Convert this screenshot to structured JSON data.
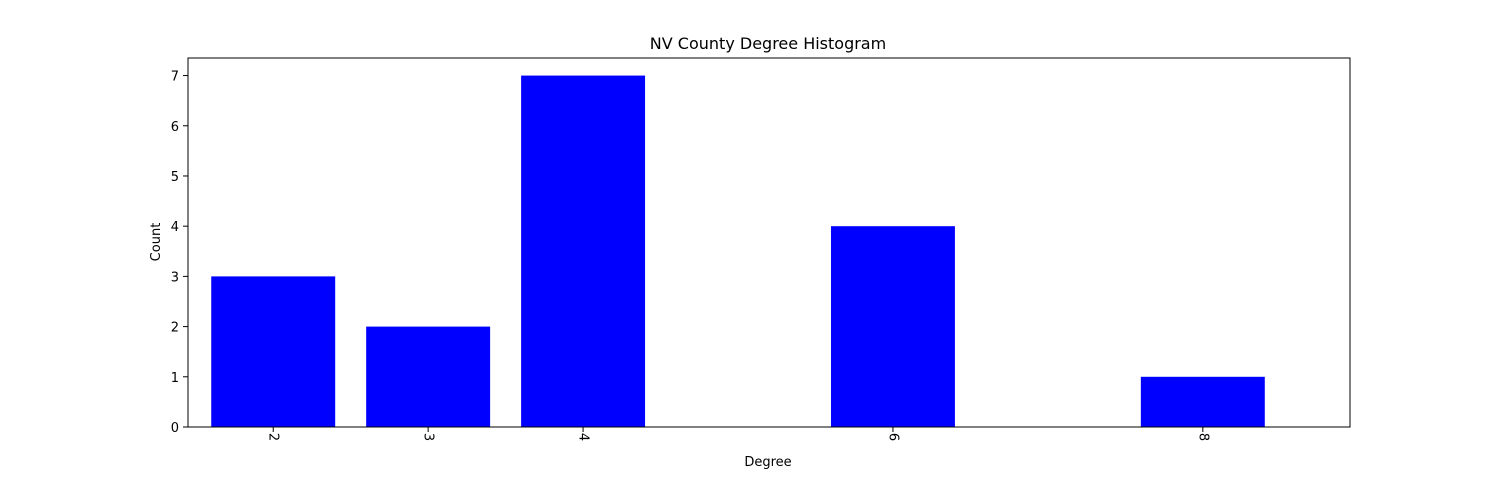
{
  "chart_data": {
    "type": "bar",
    "title": "NV County Degree Histogram",
    "xlabel": "Degree",
    "ylabel": "Count",
    "categories": [
      2,
      3,
      4,
      6,
      8
    ],
    "values": [
      3,
      2,
      7,
      4,
      1
    ],
    "bar_color": "#0000ff",
    "xlim": [
      1.45,
      8.95
    ],
    "ylim": [
      0,
      7.35
    ],
    "yticks": [
      0,
      1,
      2,
      3,
      4,
      5,
      6,
      7
    ],
    "xticks": [
      2,
      3,
      4,
      6,
      8
    ],
    "grid": false,
    "legend": "none"
  }
}
